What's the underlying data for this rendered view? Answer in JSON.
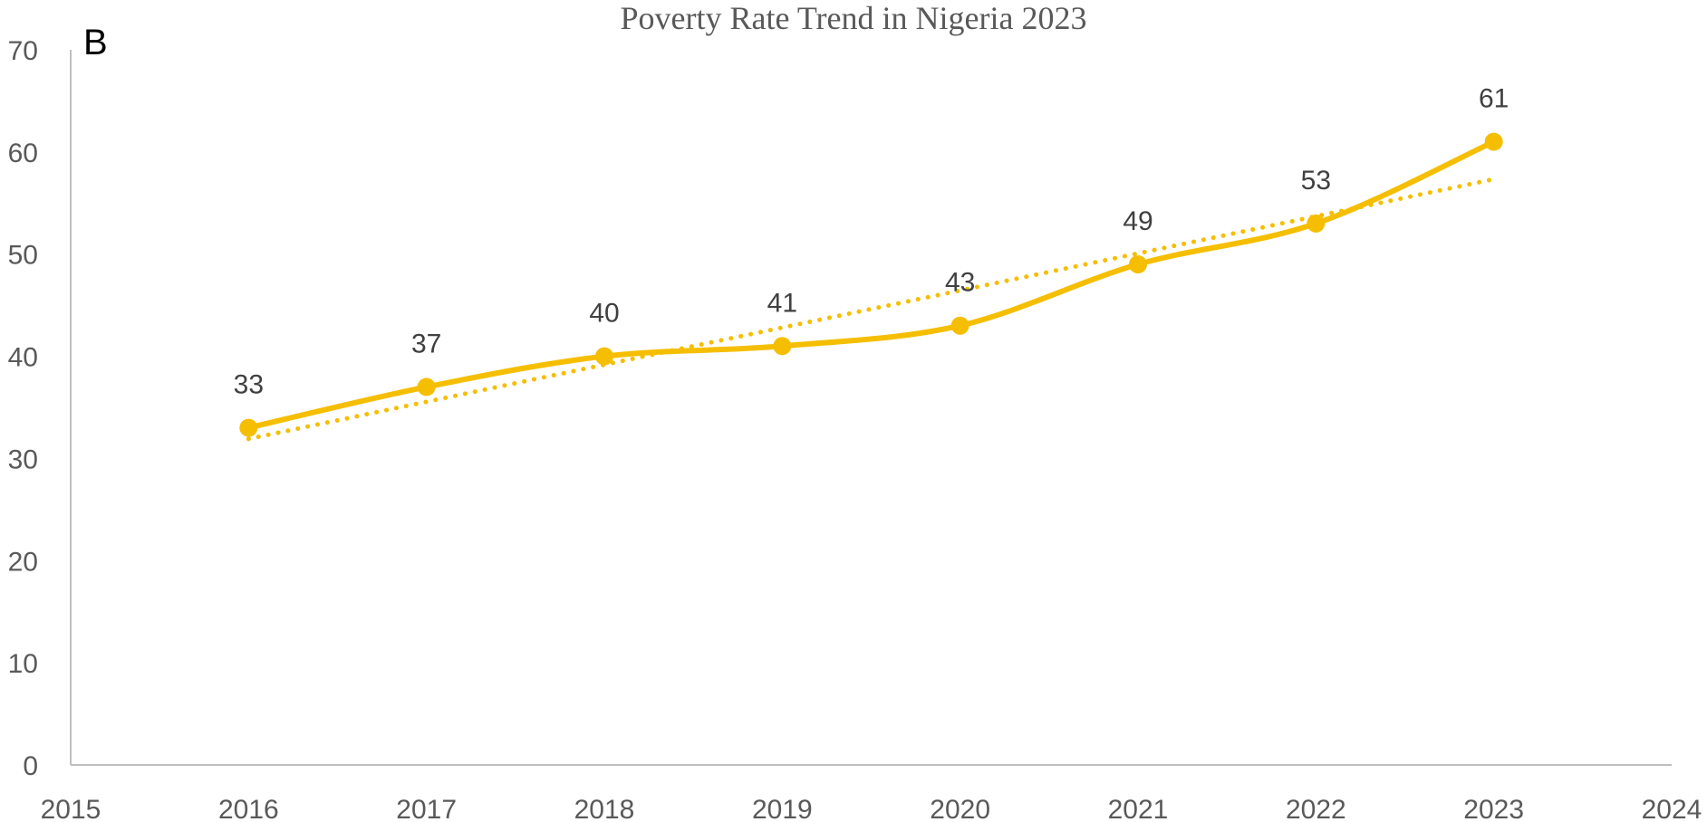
{
  "panel_label": "B",
  "chart_data": {
    "type": "line",
    "title": "Poverty Rate Trend in Nigeria 2023",
    "xlabel": "",
    "ylabel": "",
    "xlim": [
      2015,
      2024
    ],
    "ylim": [
      0,
      70
    ],
    "x_ticks": [
      2015,
      2016,
      2017,
      2018,
      2019,
      2020,
      2021,
      2022,
      2023,
      2024
    ],
    "y_ticks": [
      0,
      10,
      20,
      30,
      40,
      50,
      60,
      70
    ],
    "grid": false,
    "legend": "none",
    "series": [
      {
        "x": [
          2016,
          2017,
          2018,
          2019,
          2020,
          2021,
          2022,
          2023
        ],
        "values": [
          33,
          37,
          40,
          41,
          43,
          49,
          53,
          61
        ],
        "data_labels": true,
        "smooth": true,
        "marker": "circle",
        "color": "#F5BE00",
        "trendline": {
          "type": "linear",
          "style": "dotted"
        }
      }
    ]
  }
}
